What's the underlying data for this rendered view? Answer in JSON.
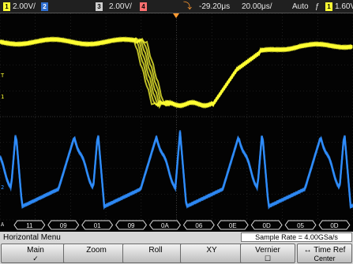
{
  "status_bar": {
    "channel1": {
      "number": "1",
      "scale": "2.00V/",
      "color": "#ffff33"
    },
    "channel2": {
      "number": "2",
      "scale": "",
      "color": "#6aa8ff"
    },
    "channel3": {
      "number": "3",
      "scale": "2.00V/",
      "color": "#ffffff"
    },
    "channel4": {
      "number": "4",
      "scale": "",
      "color": "#ff8080"
    },
    "trigger_position": "-29.20μs",
    "timebase": "20.00μs/",
    "trigger_mode": "Auto",
    "trigger_slope_icon": "rising-edge-icon",
    "trigger_source": "1",
    "trigger_level": "1.60V"
  },
  "display": {
    "colors": {
      "yellow_trace": "#ffff33",
      "blue_trace": "#2f8fff",
      "bus": "#e0e0e0"
    },
    "markers": {
      "trigger_t": "T",
      "ch1_ground": "1",
      "ch2_ground": "2",
      "bus_label": "A"
    },
    "bus_values": [
      "11",
      "09",
      "01",
      "09",
      "0A",
      "06",
      "0E",
      "0D",
      "05",
      "0D"
    ]
  },
  "menu": {
    "title": "Horizontal Menu",
    "sample_rate": "Sample Rate = 4.00GSa/s",
    "softkeys": {
      "main": "Main",
      "main_check": "✓",
      "zoom": "Zoom",
      "roll": "Roll",
      "xy": "XY",
      "vernier": "Vernier",
      "time_ref": "Time Ref",
      "time_ref_value": "Center"
    }
  }
}
